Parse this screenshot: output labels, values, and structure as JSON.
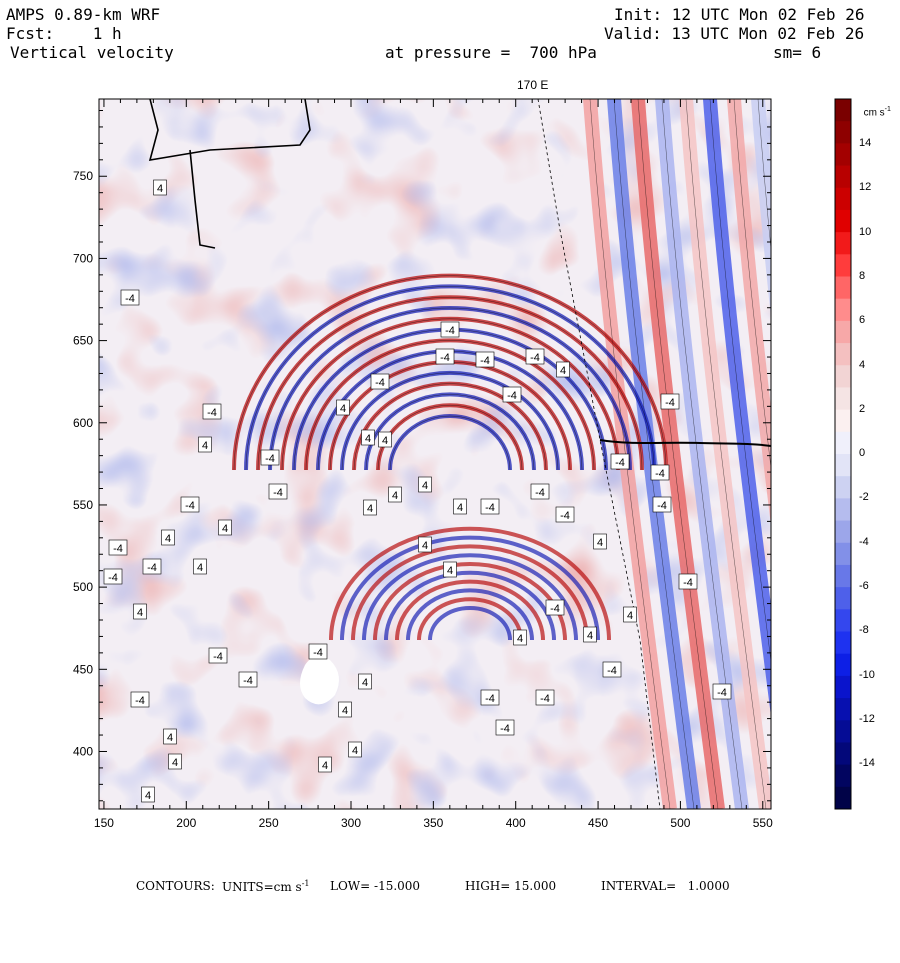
{
  "header": {
    "model": "AMPS 0.89-km WRF",
    "fcst": "Fcst:    1 h",
    "field": "Vertical velocity",
    "init": "Init: 12 UTC Mon 02 Feb 26",
    "valid": "Valid: 13 UTC Mon 02 Feb 26",
    "pressure": "at pressure =  700 hPa",
    "smoothing": "sm= 6",
    "meridian_label": "170 E"
  },
  "colorbar": {
    "units": "cm s",
    "units_exp": "-1",
    "tick_labels": [
      "14",
      "12",
      "10",
      "8",
      "6",
      "4",
      "2",
      "0",
      "-2",
      "-4",
      "-6",
      "-8",
      "-10",
      "-12",
      "-14"
    ],
    "colors_top_to_bottom": [
      "#7a0000",
      "#8e0000",
      "#a30000",
      "#b80000",
      "#cc0000",
      "#e00000",
      "#f21a1a",
      "#ff3c3c",
      "#ff6666",
      "#ff8c8c",
      "#f7a8a8",
      "#f4c0c0",
      "#f2d4d4",
      "#f5e4e4",
      "#fbf0f0",
      "#f0f0fb",
      "#e2e4f7",
      "#cdd2f2",
      "#b5bcee",
      "#9ca6ea",
      "#8290e8",
      "#6878e8",
      "#4e60ea",
      "#3447ee",
      "#1e32f0",
      "#0d1fe6",
      "#0a14cc",
      "#0710b0",
      "#050c95",
      "#03087a",
      "#020560",
      "#010348"
    ]
  },
  "chart_data": {
    "type": "heatmap",
    "x_ticks": [
      150,
      200,
      250,
      300,
      350,
      400,
      450,
      500,
      550
    ],
    "y_ticks": [
      400,
      450,
      500,
      550,
      600,
      650,
      700,
      750
    ],
    "xlim": [
      147,
      555
    ],
    "ylim": [
      365,
      797
    ],
    "contour_low": -15.0,
    "contour_high": 15.0,
    "contour_interval": 1.0,
    "contour_labels_shown": [
      "-4",
      "4"
    ]
  },
  "footer": {
    "contours": "CONTOURS:",
    "units": "UNITS=cm s",
    "units_exp": "-1",
    "low": "LOW= -15.000",
    "high": "HIGH= 15.000",
    "interval": "INTERVAL=   1.0000"
  }
}
